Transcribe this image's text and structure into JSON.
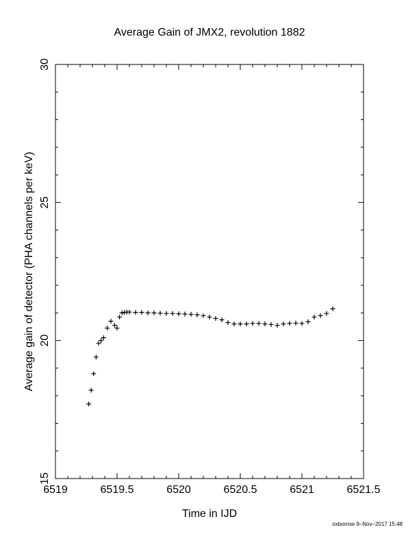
{
  "chart_data": {
    "type": "scatter",
    "title": "Average Gain of JMX2, revolution 1882",
    "xlabel": "Time in IJD",
    "ylabel": "Average gain of detector (PHA channels per keV)",
    "xlim": [
      6519,
      6521.5
    ],
    "ylim": [
      15,
      30
    ],
    "xticks": [
      6519,
      6519.5,
      6520,
      6520.5,
      6521,
      6521.5
    ],
    "xtick_labels": [
      "6519",
      "6519.5",
      "6520",
      "6520.5",
      "6521",
      "6521.5"
    ],
    "yticks": [
      15,
      20,
      25,
      30
    ],
    "ytick_labels": [
      "15",
      "20",
      "25",
      "30"
    ],
    "y_minor_step": 1,
    "x_minor_step": 0.1,
    "grid": false,
    "marker": "+",
    "series": [
      {
        "x": [
          6519.27,
          6519.29,
          6519.31,
          6519.33,
          6519.35,
          6519.37,
          6519.39,
          6519.42,
          6519.45,
          6519.48,
          6519.5,
          6519.52,
          6519.54,
          6519.56,
          6519.58,
          6519.6,
          6519.65,
          6519.7,
          6519.75,
          6519.8,
          6519.85,
          6519.9,
          6519.95,
          6520.0,
          6520.05,
          6520.1,
          6520.15,
          6520.2,
          6520.25,
          6520.3,
          6520.35,
          6520.4,
          6520.45,
          6520.5,
          6520.55,
          6520.6,
          6520.65,
          6520.7,
          6520.75,
          6520.8,
          6520.85,
          6520.9,
          6520.95,
          6521.0,
          6521.05,
          6521.1,
          6521.15,
          6521.2,
          6521.25
        ],
        "y": [
          17.7,
          18.2,
          18.8,
          19.4,
          19.9,
          20.0,
          20.1,
          20.45,
          20.7,
          20.55,
          20.45,
          20.85,
          21.0,
          21.02,
          21.03,
          21.03,
          21.02,
          21.02,
          21.0,
          21.0,
          20.99,
          20.98,
          20.98,
          20.97,
          20.96,
          20.95,
          20.93,
          20.9,
          20.85,
          20.8,
          20.75,
          20.65,
          20.6,
          20.6,
          20.6,
          20.62,
          20.62,
          20.6,
          20.58,
          20.55,
          20.6,
          20.62,
          20.63,
          20.62,
          20.68,
          20.85,
          20.9,
          20.98,
          21.15
        ]
      }
    ]
  },
  "footer": {
    "credit": "oxborrow  9–Nov–2017 15:48"
  }
}
